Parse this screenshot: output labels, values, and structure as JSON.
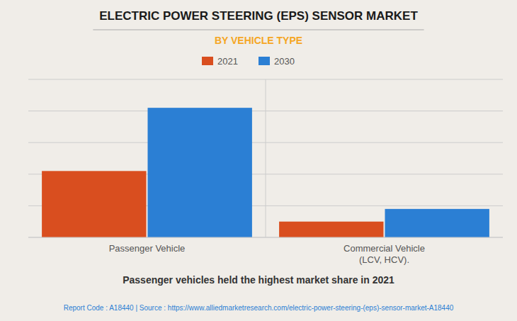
{
  "chart_data": {
    "type": "bar",
    "title": "ELECTRIC POWER STEERING (EPS) SENSOR MARKET",
    "subtitle": "BY VEHICLE TYPE",
    "annotation": "Passenger vehicles held the highest market share in 2021",
    "footer": "Report Code : A18440  |  Source : https://www.alliedmarketresearch.com/electric-power-steering-(eps)-sensor-market-A18440",
    "categories": [
      "Passenger Vehicle",
      "Commercial Vehicle\n(LCV, HCV)."
    ],
    "series": [
      {
        "name": "2021",
        "color": "#d94e1f",
        "values": [
          42,
          10
        ]
      },
      {
        "name": "2030",
        "color": "#2b7fd4",
        "values": [
          82,
          18
        ]
      }
    ],
    "ylim": [
      0,
      100
    ],
    "yticks": [
      0,
      20,
      40,
      60,
      80,
      100
    ],
    "grid": true,
    "legend": "top",
    "tick_labels": "x"
  }
}
